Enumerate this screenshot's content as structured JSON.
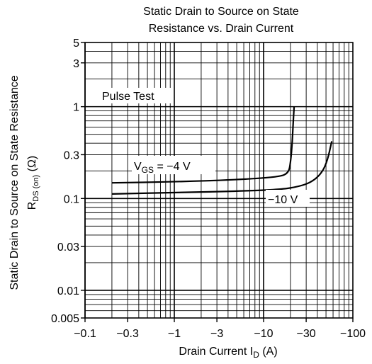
{
  "chart_data": {
    "type": "line",
    "title": [
      "Static Drain to Source on State",
      "Resistance vs. Drain Current"
    ],
    "xlabel": {
      "main": "Drain Current  I",
      "sub": "D",
      "unit": "  (A)"
    },
    "ylabel": {
      "line1": "Static Drain to Source on State Resistance",
      "line2_main": "R",
      "line2_sub": "DS (on)",
      "line2_unit": "  (Ω)"
    },
    "x_scale": "log",
    "y_scale": "log",
    "xlim": [
      -0.1,
      -100
    ],
    "ylim": [
      0.005,
      5
    ],
    "x_ticks": [
      {
        "value": -0.1,
        "label": "−0.1"
      },
      {
        "value": -0.3,
        "label": "−0.3"
      },
      {
        "value": -1,
        "label": "−1"
      },
      {
        "value": -3,
        "label": "−3"
      },
      {
        "value": -10,
        "label": "−10"
      },
      {
        "value": -30,
        "label": "−30"
      },
      {
        "value": -100,
        "label": "−100"
      }
    ],
    "y_ticks": [
      {
        "value": 0.005,
        "label": "0.005"
      },
      {
        "value": 0.01,
        "label": "0.01"
      },
      {
        "value": 0.03,
        "label": "0.03"
      },
      {
        "value": 0.1,
        "label": "0.1"
      },
      {
        "value": 0.3,
        "label": "0.3"
      },
      {
        "value": 1,
        "label": "1"
      },
      {
        "value": 3,
        "label": "3"
      },
      {
        "value": 5,
        "label": "5"
      }
    ],
    "grid": true,
    "annotation": "Pulse Test",
    "series": [
      {
        "label_main": "V",
        "label_sub": "GS",
        "label_rest": " = −4 V",
        "x": [
          -0.2,
          -1,
          -5,
          -15,
          -19,
          -20,
          -21,
          -21.5,
          -22
        ],
        "y": [
          0.148,
          0.152,
          0.16,
          0.172,
          0.19,
          0.24,
          0.42,
          0.7,
          1.0
        ]
      },
      {
        "label_main": "",
        "label_sub": "",
        "label_rest": "−10 V",
        "x": [
          -0.2,
          -1,
          -5,
          -15,
          -25,
          -35,
          -45,
          -52,
          -58
        ],
        "y": [
          0.112,
          0.116,
          0.12,
          0.125,
          0.135,
          0.152,
          0.19,
          0.26,
          0.42
        ]
      }
    ]
  }
}
